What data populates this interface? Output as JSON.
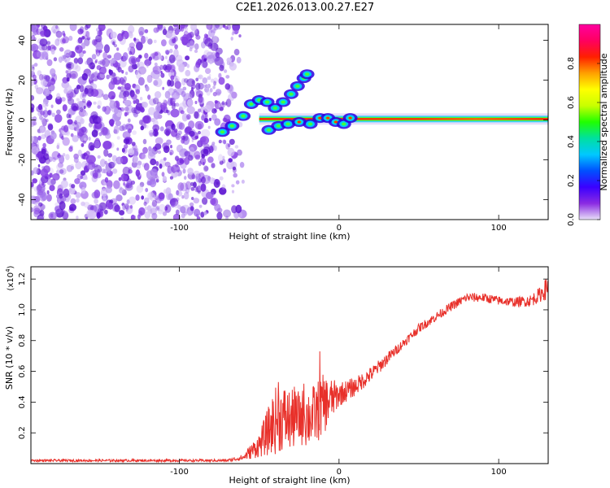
{
  "title": "C2E1.2026.013.00.27.E27",
  "colors": {
    "snr_line": "#e8302a",
    "background": "#ffffff",
    "spectral_ridge_core": "#ff2000",
    "scatter_violet": "#6a1fd8",
    "scatter_light": "#c8a6f2"
  },
  "chart_data": [
    {
      "type": "heatmap",
      "title": "",
      "xlabel": "Height of straight line (km)",
      "ylabel": "Frequency (Hz)",
      "xlim": [
        -193,
        131
      ],
      "ylim": [
        -50,
        48
      ],
      "xticks": [
        -100,
        0,
        100
      ],
      "yticks": [
        -40,
        -20,
        0,
        20,
        40
      ],
      "noise_region_x": [
        -193,
        -60
      ],
      "ridge": {
        "x_start": -50,
        "x_end": 131,
        "frequency": 0.5,
        "note": "stable spectral line near 0 Hz"
      },
      "blob_trail": [
        {
          "x": -73,
          "y": -6
        },
        {
          "x": -67,
          "y": -3
        },
        {
          "x": -60,
          "y": 2
        },
        {
          "x": -55,
          "y": 8
        },
        {
          "x": -50,
          "y": 10
        },
        {
          "x": -45,
          "y": 9
        },
        {
          "x": -40,
          "y": 6
        },
        {
          "x": -35,
          "y": 9
        },
        {
          "x": -30,
          "y": 13
        },
        {
          "x": -26,
          "y": 17
        },
        {
          "x": -22,
          "y": 21
        },
        {
          "x": -20,
          "y": 23
        }
      ],
      "lower_blobs": [
        {
          "x": -44,
          "y": -5
        },
        {
          "x": -38,
          "y": -3
        },
        {
          "x": -32,
          "y": -2
        },
        {
          "x": -25,
          "y": -1
        },
        {
          "x": -18,
          "y": -2
        },
        {
          "x": -12,
          "y": 1
        },
        {
          "x": -7,
          "y": 1
        },
        {
          "x": -2,
          "y": -1
        },
        {
          "x": 3,
          "y": -2
        },
        {
          "x": 7,
          "y": 1
        }
      ],
      "colorbar": {
        "label": "Normalized spectral amplitude",
        "range": [
          0,
          1
        ],
        "ticks": [
          "0.0",
          "0.2",
          "0.4",
          "0.6",
          "0.8"
        ],
        "colormap": [
          "#e8e0f8",
          "#8a2be2",
          "#3a00ff",
          "#0050ff",
          "#00c8ff",
          "#00e0a0",
          "#20ff00",
          "#c8ff00",
          "#ffff00",
          "#ffa000",
          "#ff2000",
          "#ff0060",
          "#ff00a0"
        ]
      }
    },
    {
      "type": "line",
      "title": "",
      "xlabel": "Height of straight line (km)",
      "ylabel": "SNR (10 * v/v)",
      "multiplier_label": "(x10",
      "multiplier_exp": "4",
      "multiplier_close": ")",
      "xlim": [
        -193,
        131
      ],
      "ylim": [
        0,
        1.28
      ],
      "xticks": [
        -100,
        0,
        100
      ],
      "yticks": [
        0.2,
        0.4,
        0.6,
        0.8,
        1.0,
        1.2
      ],
      "ytick_labels": [
        "0.2",
        "0.4",
        "0.6",
        "0.8",
        "1.0",
        "1.2"
      ],
      "envelope": [
        {
          "x": -193,
          "y": 0.02,
          "amp": 0.008
        },
        {
          "x": -70,
          "y": 0.02,
          "amp": 0.008
        },
        {
          "x": -60,
          "y": 0.04,
          "amp": 0.02
        },
        {
          "x": -50,
          "y": 0.12,
          "amp": 0.08
        },
        {
          "x": -45,
          "y": 0.2,
          "amp": 0.15
        },
        {
          "x": -40,
          "y": 0.28,
          "amp": 0.22
        },
        {
          "x": -35,
          "y": 0.3,
          "amp": 0.22
        },
        {
          "x": -30,
          "y": 0.28,
          "amp": 0.2
        },
        {
          "x": -25,
          "y": 0.3,
          "amp": 0.18
        },
        {
          "x": -20,
          "y": 0.3,
          "amp": 0.2
        },
        {
          "x": -15,
          "y": 0.32,
          "amp": 0.2
        },
        {
          "x": -10,
          "y": 0.38,
          "amp": 0.2
        },
        {
          "x": 0,
          "y": 0.45,
          "amp": 0.08
        },
        {
          "x": 10,
          "y": 0.5,
          "amp": 0.06
        },
        {
          "x": 20,
          "y": 0.58,
          "amp": 0.05
        },
        {
          "x": 30,
          "y": 0.68,
          "amp": 0.04
        },
        {
          "x": 40,
          "y": 0.78,
          "amp": 0.03
        },
        {
          "x": 50,
          "y": 0.88,
          "amp": 0.03
        },
        {
          "x": 60,
          "y": 0.95,
          "amp": 0.03
        },
        {
          "x": 70,
          "y": 1.02,
          "amp": 0.03
        },
        {
          "x": 80,
          "y": 1.08,
          "amp": 0.03
        },
        {
          "x": 90,
          "y": 1.08,
          "amp": 0.03
        },
        {
          "x": 100,
          "y": 1.06,
          "amp": 0.03
        },
        {
          "x": 110,
          "y": 1.05,
          "amp": 0.03
        },
        {
          "x": 120,
          "y": 1.06,
          "amp": 0.04
        },
        {
          "x": 126,
          "y": 1.1,
          "amp": 0.05
        },
        {
          "x": 131,
          "y": 1.15,
          "amp": 0.08
        }
      ],
      "spikes": [
        {
          "x": -38,
          "y": 0.53
        },
        {
          "x": -28,
          "y": 0.5
        },
        {
          "x": -22,
          "y": 0.52
        },
        {
          "x": -12,
          "y": 0.73
        }
      ]
    }
  ]
}
